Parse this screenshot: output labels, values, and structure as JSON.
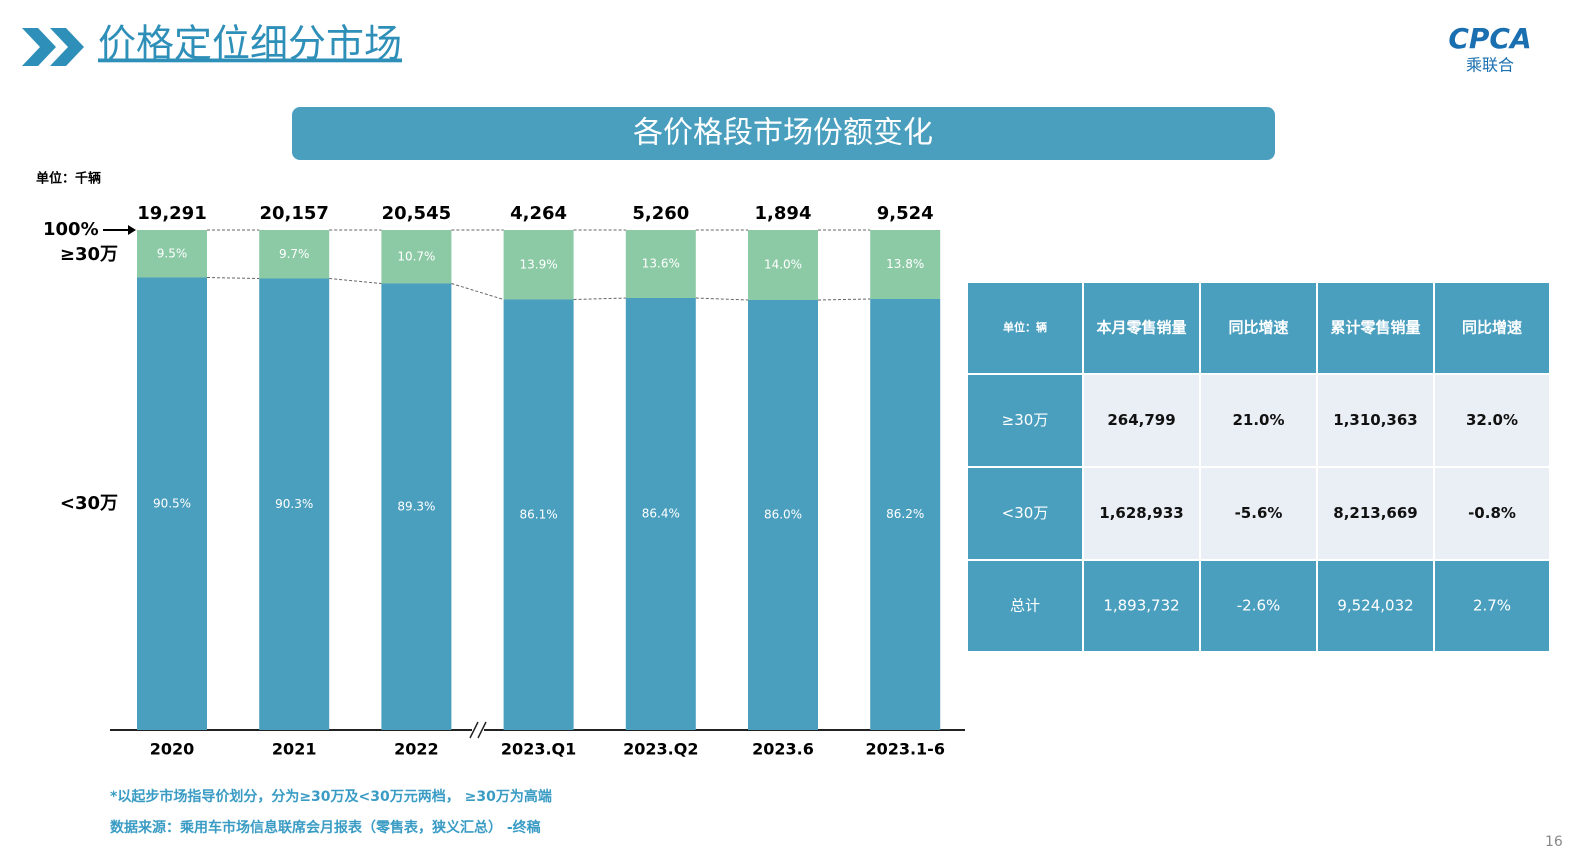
{
  "header": {
    "title": "价格定位细分市场",
    "logo": "CPCA",
    "logo_sub": "乘联合"
  },
  "banner": "各价格段市场份额变化",
  "chart_data": {
    "type": "bar",
    "stacked": true,
    "unit": "单位：千辆",
    "categories": [
      "2020",
      "2021",
      "2022",
      "2023.Q1",
      "2023.Q2",
      "2023.6",
      "2023.1-6"
    ],
    "series": [
      {
        "name": "<30万",
        "color": "#4a9fbf",
        "values": [
          90.5,
          90.3,
          89.3,
          86.1,
          86.4,
          86.0,
          86.2
        ],
        "value_labels": [
          "90.5%",
          "90.3%",
          "89.3%",
          "86.1%",
          "86.4%",
          "86.0%",
          "86.2%"
        ]
      },
      {
        "name": "≥30万",
        "color": "#8ccaa6",
        "values": [
          9.5,
          9.7,
          10.7,
          13.9,
          13.6,
          14.0,
          13.8
        ],
        "value_labels": [
          "9.5%",
          "9.7%",
          "10.7%",
          "13.9%",
          "13.6%",
          "14.0%",
          "13.8%"
        ]
      }
    ],
    "totals": {
      "values": [
        19291,
        20157,
        20545,
        4264,
        5260,
        1894,
        9524
      ],
      "value_labels": [
        "19,291",
        "20,157",
        "20,545",
        "4,264",
        "5,260",
        "1,894",
        "9,524"
      ]
    },
    "ylim": [
      0,
      100
    ],
    "yticks": [
      {
        "value": 100,
        "label": "100%"
      }
    ]
  },
  "table": {
    "header": [
      "单位：辆",
      "本月零售销量",
      "同比增速",
      "累计零售销量",
      "同比增速"
    ],
    "rows": [
      [
        "≥30万",
        "264,799",
        "21.0%",
        "1,310,363",
        "32.0%"
      ],
      [
        "<30万",
        "1,628,933",
        "-5.6%",
        "8,213,669",
        "-0.8%"
      ],
      [
        "总计",
        "1,893,732",
        "-2.6%",
        "9,524,032",
        "2.7%"
      ]
    ]
  },
  "footnotes": [
    "*以起步市场指导价划分，分为≥30万及<30万元两档， ≥30万为高端",
    "数据来源：乘用车市场信息联席会月报表（零售表，狭义汇总） -终稿"
  ],
  "page_number": "16"
}
